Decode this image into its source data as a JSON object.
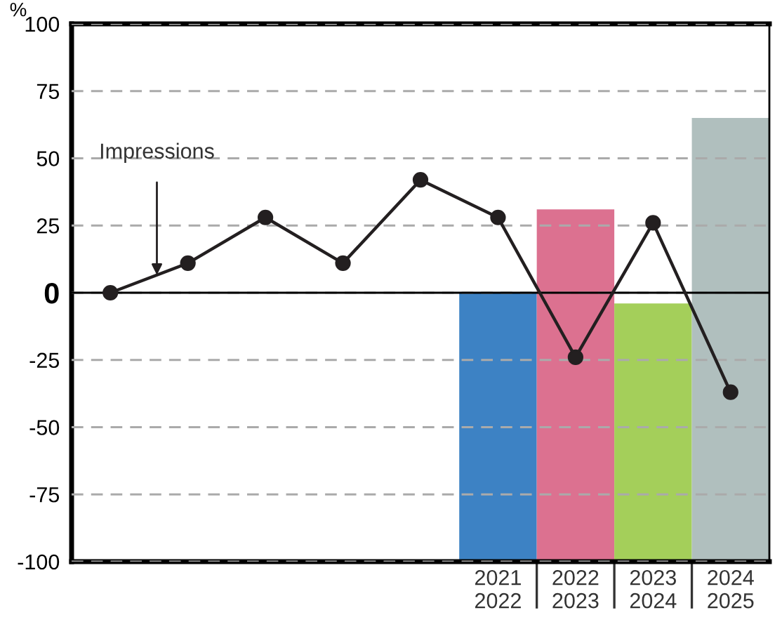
{
  "chart_data": {
    "type": "bar",
    "ylabel": "%",
    "categories": [
      null,
      null,
      null,
      null,
      null,
      "2021\n2022",
      "2022\n2023",
      "2023\n2024",
      "2024\n2025"
    ],
    "series": [
      {
        "colors": [
          "#3d82c4",
          "#3d82c4",
          "#3d82c4",
          "#3d82c4",
          "#3d82c4",
          "#3d82c4",
          "#dc7190",
          "#a4cf5a",
          "#b0bfbe"
        ],
        "values": [
          null,
          null,
          null,
          null,
          null,
          100,
          131,
          96,
          165
        ],
        "base": [
          null,
          null,
          null,
          null,
          null,
          -100,
          -100,
          -100,
          -100
        ]
      },
      {
        "type": "line",
        "name": "Impressions",
        "color": "#231f20",
        "values": [
          0,
          11,
          28,
          11,
          42,
          28,
          -24,
          26,
          -37
        ],
        "marker": "circle",
        "line_style": "solid"
      }
    ],
    "ylim": [
      -100,
      100
    ],
    "yticks": [
      -100,
      -75,
      -50,
      -25,
      0,
      25,
      50,
      75,
      100
    ],
    "grid": "y",
    "legend": false,
    "ref_lines": [
      {
        "axis": "y",
        "value": 0,
        "color": "#000000",
        "line_style": "solid"
      }
    ]
  }
}
